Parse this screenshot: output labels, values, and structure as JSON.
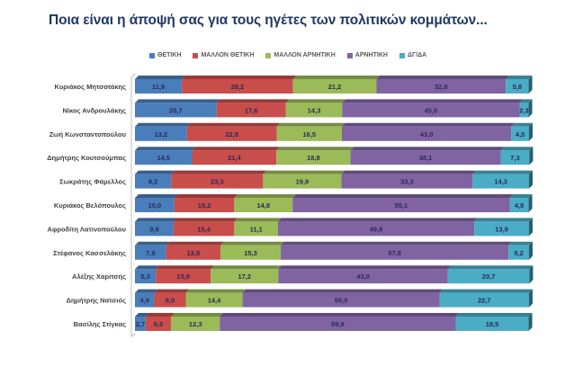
{
  "chart_data": {
    "type": "bar",
    "orientation": "horizontal",
    "stacked": "percent",
    "title": "Ποια είναι η άποψή σας για τους ηγέτες των πολιτικών κομμάτων...",
    "xlabel": "",
    "ylabel": "",
    "xlim": [
      0,
      100
    ],
    "grid": false,
    "legend_position": "top",
    "categories": [
      "Κυριάκος Μητσοτάκης",
      "Νίκος Ανδρουλάκης",
      "Ζωή Κωνσταντοπούλου",
      "Δημήτρης Κουτσούμπας",
      "Σωκράτης Φάμελλος",
      "Κυριάκος Βελόπουλος",
      "Αφροδίτη Λατινοπούλου",
      "Στέφανος Κασσελάκης",
      "Αλέξης Χαρίτσης",
      "Δημήτρης Νατσιός",
      "Βασίλης Στίγκας"
    ],
    "series": [
      {
        "name": "ΘΕΤΙΚΗ",
        "color": "#4a7ebb",
        "values": [
          11.9,
          20.7,
          13.2,
          14.5,
          9.2,
          10.0,
          9.8,
          7.9,
          5.3,
          4.9,
          2.7
        ],
        "labels": [
          "11,9",
          "20,7",
          "13,2",
          "14,5",
          "9,2",
          "10,0",
          "9,8",
          "7,9",
          "5,3",
          "4,9",
          "2,7"
        ]
      },
      {
        "name": "ΜΑΛΛΟΝ ΘΕΤΙΚΗ",
        "color": "#c94d4b",
        "values": [
          28.2,
          17.6,
          22.8,
          21.4,
          23.3,
          15.2,
          15.4,
          13.8,
          13.9,
          8.0,
          6.5
        ],
        "labels": [
          "28,2",
          "17,6",
          "22,8",
          "21,4",
          "23,3",
          "15,2",
          "15,4",
          "13,8",
          "13,9",
          "8,0",
          "6,5"
        ]
      },
      {
        "name": "ΜΑΛΛΟΝ ΑΡΝΗΤΙΚΗ",
        "color": "#9bbb59",
        "values": [
          21.2,
          14.3,
          16.5,
          18.8,
          19.9,
          14.8,
          11.1,
          15.3,
          17.2,
          14.4,
          12.3
        ],
        "labels": [
          "21,2",
          "14,3",
          "16,5",
          "18,8",
          "19,9",
          "14,8",
          "11,1",
          "15,3",
          "17,2",
          "14,4",
          "12,3"
        ]
      },
      {
        "name": "ΑΡΝΗΤΙΚΗ",
        "color": "#8064a2",
        "values": [
          32.8,
          45.0,
          43.0,
          38.1,
          33.3,
          55.1,
          49.8,
          57.8,
          43.0,
          50.0,
          59.9
        ],
        "labels": [
          "32,8",
          "45,0",
          "43,0",
          "38,1",
          "33,3",
          "55,1",
          "49,8",
          "57,8",
          "43,0",
          "50,0",
          "59,9"
        ]
      },
      {
        "name": "ΔΓ/ΔΑ",
        "color": "#4bacc6",
        "values": [
          5.8,
          2.3,
          4.5,
          7.3,
          14.3,
          4.8,
          13.9,
          5.2,
          20.7,
          22.7,
          18.5
        ],
        "labels": [
          "5,8",
          "2,3",
          "4,5",
          "7,3",
          "14,3",
          "4,8",
          "13,9",
          "5,2",
          "20,7",
          "22,7",
          "18,5"
        ]
      }
    ]
  }
}
